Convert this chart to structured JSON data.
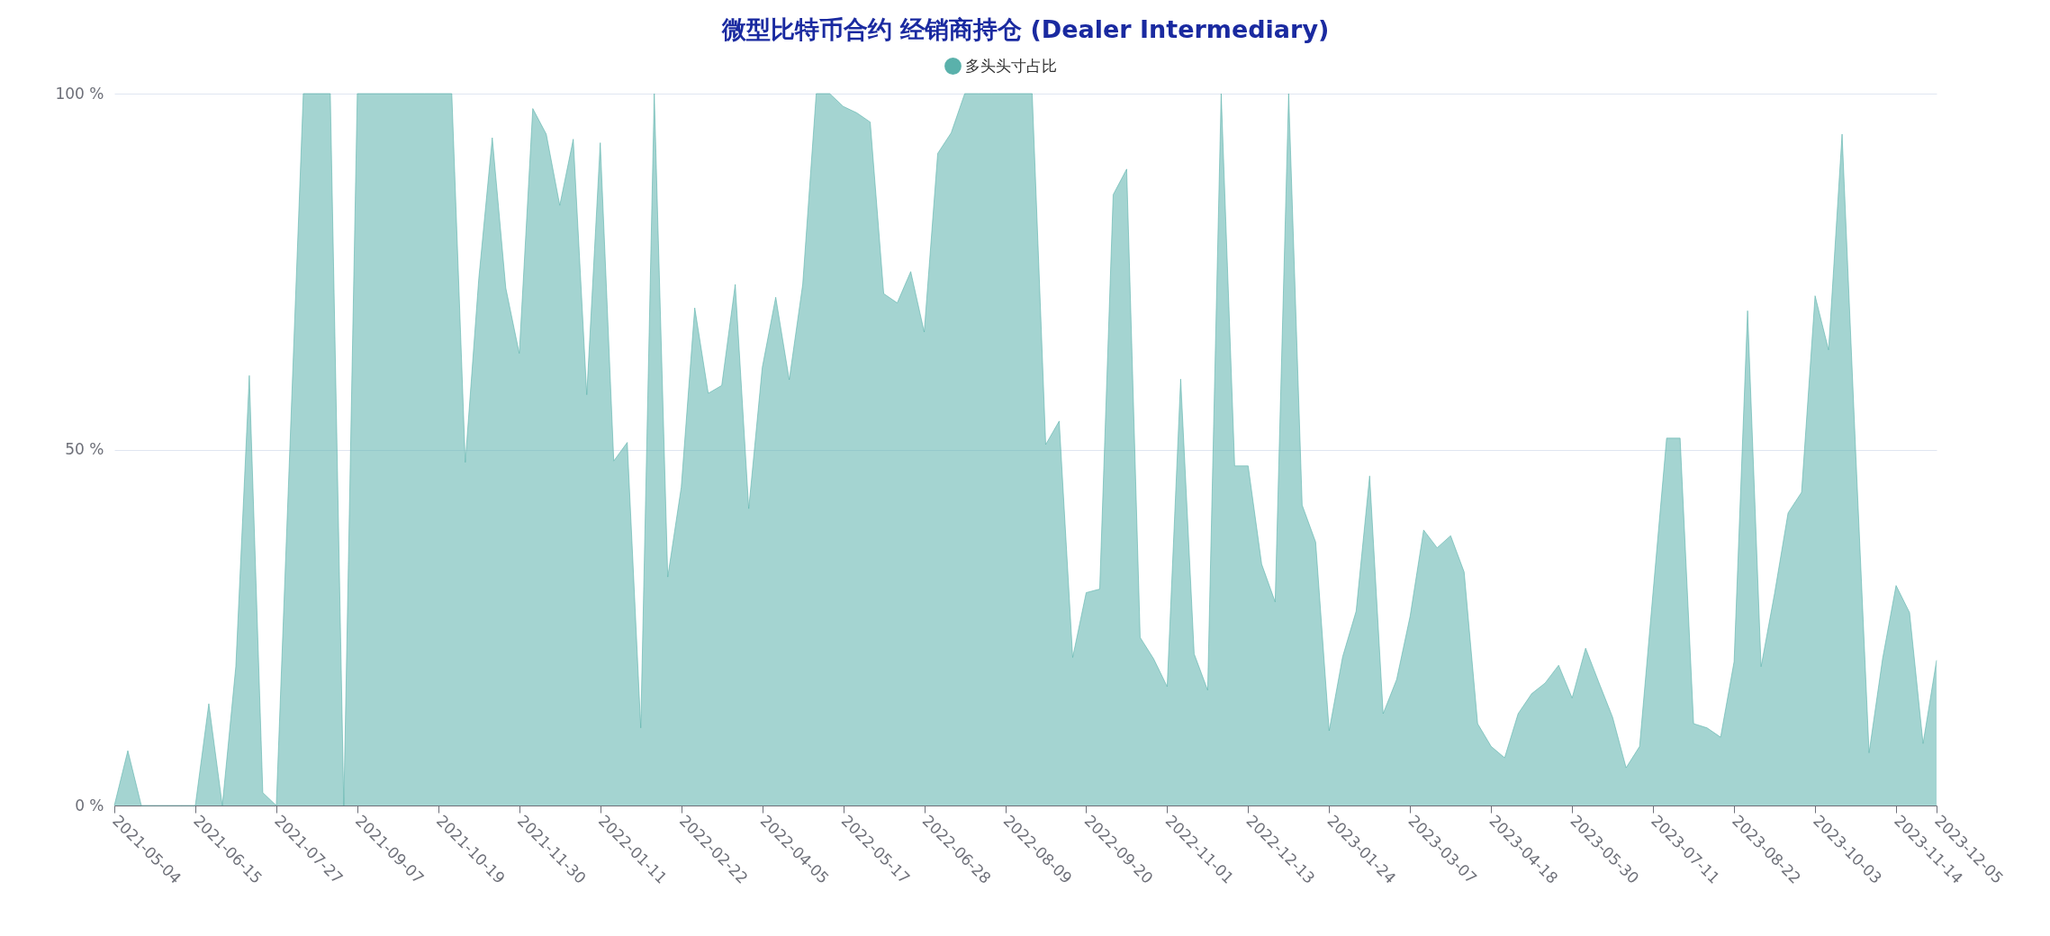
{
  "chart_data": {
    "type": "area",
    "title": "微型比特币合约 经销商持仓 (Dealer Intermediary)",
    "x": [
      "2021-05-04",
      "2021-05-11",
      "2021-05-18",
      "2021-05-25",
      "2021-06-01",
      "2021-06-08",
      "2021-06-15",
      "2021-06-22",
      "2021-06-29",
      "2021-07-06",
      "2021-07-13",
      "2021-07-20",
      "2021-07-27",
      "2021-08-03",
      "2021-08-10",
      "2021-08-17",
      "2021-08-24",
      "2021-08-31",
      "2021-09-07",
      "2021-09-14",
      "2021-09-21",
      "2021-09-28",
      "2021-10-05",
      "2021-10-12",
      "2021-10-19",
      "2021-10-26",
      "2021-11-02",
      "2021-11-09",
      "2021-11-16",
      "2021-11-23",
      "2021-11-30",
      "2021-12-07",
      "2021-12-14",
      "2021-12-21",
      "2021-12-28",
      "2022-01-04",
      "2022-01-11",
      "2022-01-18",
      "2022-01-25",
      "2022-02-01",
      "2022-02-08",
      "2022-02-15",
      "2022-02-22",
      "2022-03-01",
      "2022-03-08",
      "2022-03-15",
      "2022-03-22",
      "2022-03-29",
      "2022-04-05",
      "2022-04-12",
      "2022-04-19",
      "2022-04-26",
      "2022-05-03",
      "2022-05-10",
      "2022-05-17",
      "2022-05-24",
      "2022-05-31",
      "2022-06-07",
      "2022-06-14",
      "2022-06-21",
      "2022-06-28",
      "2022-07-05",
      "2022-07-12",
      "2022-07-19",
      "2022-07-26",
      "2022-08-02",
      "2022-08-09",
      "2022-08-16",
      "2022-08-23",
      "2022-08-30",
      "2022-09-06",
      "2022-09-13",
      "2022-09-20",
      "2022-09-27",
      "2022-10-04",
      "2022-10-11",
      "2022-10-18",
      "2022-10-25",
      "2022-11-01",
      "2022-11-08",
      "2022-11-15",
      "2022-11-22",
      "2022-11-29",
      "2022-12-06",
      "2022-12-13",
      "2022-12-20",
      "2022-12-27",
      "2023-01-03",
      "2023-01-10",
      "2023-01-17",
      "2023-01-24",
      "2023-01-31",
      "2023-02-07",
      "2023-02-14",
      "2023-02-21",
      "2023-02-28",
      "2023-03-07",
      "2023-03-14",
      "2023-03-21",
      "2023-03-28",
      "2023-04-04",
      "2023-04-11",
      "2023-04-18",
      "2023-04-25",
      "2023-05-02",
      "2023-05-09",
      "2023-05-16",
      "2023-05-23",
      "2023-05-30",
      "2023-06-06",
      "2023-06-13",
      "2023-06-20",
      "2023-06-27",
      "2023-07-04",
      "2023-07-11",
      "2023-07-18",
      "2023-07-25",
      "2023-08-01",
      "2023-08-08",
      "2023-08-15",
      "2023-08-22",
      "2023-08-29",
      "2023-09-05",
      "2023-09-12",
      "2023-09-19",
      "2023-09-26",
      "2023-10-03",
      "2023-10-10",
      "2023-10-17",
      "2023-10-24",
      "2023-10-31",
      "2023-11-07",
      "2023-11-14",
      "2023-11-21",
      "2023-11-28",
      "2023-12-05"
    ],
    "series": [
      {
        "name": "多头头寸占比",
        "color": "#5ab1ab",
        "values": [
          0,
          7.7,
          0,
          0,
          0,
          0,
          0,
          14.3,
          0,
          19.5,
          60.4,
          1.8,
          0,
          50,
          100,
          100,
          100,
          0,
          100,
          100,
          100,
          100,
          100,
          100,
          100,
          100,
          48.2,
          74,
          93.8,
          72.7,
          63.5,
          97.9,
          94.3,
          84.3,
          93.6,
          57.7,
          93.1,
          48.4,
          51,
          10.9,
          100,
          32.1,
          44.7,
          69.9,
          57.9,
          59,
          73.2,
          41.7,
          61.5,
          71.4,
          59.8,
          73.2,
          100,
          100,
          98.2,
          97.3,
          96,
          71.9,
          70.6,
          75,
          66.5,
          91.6,
          94.5,
          100,
          100,
          100,
          100,
          100,
          100,
          50.7,
          54,
          20.8,
          29.9,
          30.4,
          85.8,
          89.4,
          23.6,
          20.6,
          16.7,
          59.9,
          21.3,
          16.2,
          100,
          47.7,
          47.7,
          33.9,
          28.6,
          100,
          42.2,
          37,
          10.5,
          20.9,
          27.3,
          46.3,
          12.9,
          17.7,
          26.6,
          38.7,
          36.2,
          37.9,
          32.8,
          11.5,
          8.3,
          6.7,
          12.9,
          15.7,
          17.2,
          19.7,
          15.1,
          22.1,
          17.2,
          12.4,
          5.3,
          8.3,
          30,
          51.6,
          51.6,
          11.5,
          10.9,
          9.6,
          20.2,
          69.5,
          19.5,
          29.8,
          41.1,
          44,
          71.6,
          64,
          94.3,
          50,
          7.4,
          20.6,
          30.9,
          27.1,
          8.7,
          20.4
        ]
      }
    ],
    "xlim": [
      "2021-05-04",
      "2023-12-05"
    ],
    "xticks": [
      "2021-05-04",
      "2021-06-15",
      "2021-07-27",
      "2021-09-07",
      "2021-10-19",
      "2021-11-30",
      "2022-01-11",
      "2022-02-22",
      "2022-04-05",
      "2022-05-17",
      "2022-06-28",
      "2022-08-09",
      "2022-09-20",
      "2022-11-01",
      "2022-12-13",
      "2023-01-24",
      "2023-03-07",
      "2023-04-18",
      "2023-05-30",
      "2023-07-11",
      "2023-08-22",
      "2023-10-03",
      "2023-11-14",
      "2023-12-05"
    ],
    "ylim": [
      0,
      100
    ],
    "yticks": [
      {
        "value": 0,
        "label": "0 %"
      },
      {
        "value": 50,
        "label": "50 %"
      },
      {
        "value": 100,
        "label": "100 %"
      }
    ],
    "grid": "y",
    "legend": "top"
  }
}
